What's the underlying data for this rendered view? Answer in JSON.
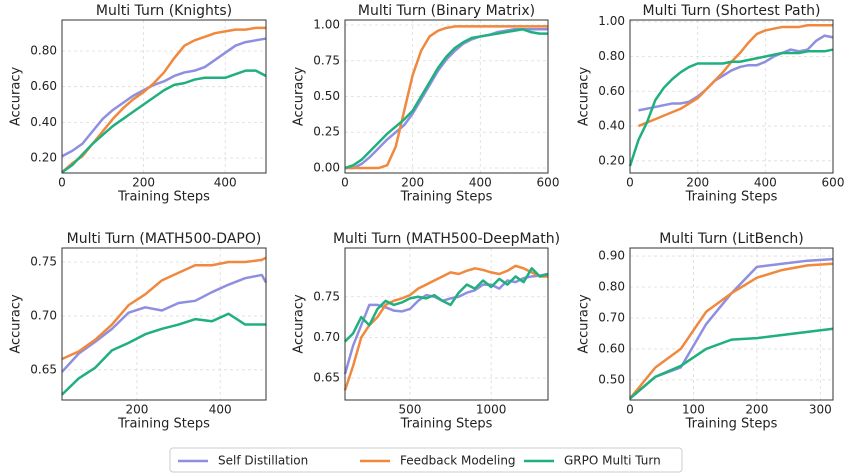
{
  "chart_data": [
    {
      "type": "line",
      "title": "Multi Turn (Knights)",
      "x_label": "Training Steps",
      "y_label": "Accuracy",
      "grid": true,
      "xlim": [
        0,
        500
      ],
      "xticks": [
        0,
        200,
        400
      ],
      "ylim": [
        0.116,
        0.974
      ],
      "yticks": [
        {
          "value": 0.2,
          "label": "0.20"
        },
        {
          "value": 0.4,
          "label": "0.40"
        },
        {
          "value": 0.6,
          "label": "0.60"
        },
        {
          "value": 0.8,
          "label": "0.80"
        }
      ],
      "x": [
        0,
        25,
        50,
        75,
        100,
        125,
        150,
        175,
        200,
        225,
        250,
        275,
        300,
        325,
        350,
        375,
        400,
        425,
        450,
        475,
        500
      ],
      "series": [
        {
          "name": "Self Distillation",
          "color": "#8f8fe2",
          "values": [
            0.21,
            0.24,
            0.28,
            0.35,
            0.42,
            0.47,
            0.51,
            0.55,
            0.58,
            0.61,
            0.63,
            0.66,
            0.68,
            0.69,
            0.71,
            0.75,
            0.79,
            0.83,
            0.85,
            0.86,
            0.87
          ]
        },
        {
          "name": "Feedback Modeling",
          "color": "#f0883e",
          "values": [
            0.12,
            0.17,
            0.21,
            0.28,
            0.35,
            0.42,
            0.48,
            0.53,
            0.57,
            0.62,
            0.68,
            0.76,
            0.83,
            0.86,
            0.88,
            0.9,
            0.91,
            0.92,
            0.92,
            0.93,
            0.93
          ]
        },
        {
          "name": "GRPO Multi Turn",
          "color": "#1fb07e",
          "values": [
            0.12,
            0.16,
            0.22,
            0.28,
            0.33,
            0.38,
            0.42,
            0.46,
            0.5,
            0.54,
            0.58,
            0.61,
            0.62,
            0.64,
            0.65,
            0.65,
            0.65,
            0.67,
            0.69,
            0.69,
            0.66
          ]
        }
      ]
    },
    {
      "type": "line",
      "title": "Multi Turn (Binary Matrix)",
      "x_label": "Training Steps",
      "y_label": "Accuracy",
      "grid": true,
      "xlim": [
        0,
        600
      ],
      "xticks": [
        0,
        200,
        400,
        600
      ],
      "ylim": [
        -0.035,
        1.035
      ],
      "yticks": [
        {
          "value": 0,
          "label": "0.00"
        },
        {
          "value": 0.25,
          "label": "0.25"
        },
        {
          "value": 0.5,
          "label": "0.50"
        },
        {
          "value": 0.75,
          "label": "0.75"
        },
        {
          "value": 1,
          "label": "1.00"
        }
      ],
      "x": [
        0,
        25,
        50,
        75,
        100,
        125,
        150,
        175,
        200,
        225,
        250,
        275,
        300,
        325,
        350,
        375,
        400,
        425,
        450,
        475,
        500,
        525,
        550,
        575,
        600
      ],
      "series": [
        {
          "name": "Self Distillation",
          "color": "#8f8fe2",
          "values": [
            0,
            0,
            0.03,
            0.08,
            0.14,
            0.2,
            0.25,
            0.3,
            0.38,
            0.48,
            0.58,
            0.68,
            0.76,
            0.82,
            0.87,
            0.9,
            0.92,
            0.93,
            0.95,
            0.96,
            0.97,
            0.97,
            0.97,
            0.97,
            0.97
          ]
        },
        {
          "name": "Feedback Modeling",
          "color": "#f0883e",
          "values": [
            0,
            0,
            0,
            0,
            0,
            0.02,
            0.15,
            0.4,
            0.65,
            0.82,
            0.92,
            0.96,
            0.98,
            0.99,
            0.99,
            0.99,
            0.99,
            0.99,
            0.99,
            0.99,
            0.99,
            0.99,
            0.99,
            0.99,
            0.99
          ]
        },
        {
          "name": "GRPO Multi Turn",
          "color": "#1fb07e",
          "values": [
            0,
            0.02,
            0.06,
            0.12,
            0.18,
            0.24,
            0.29,
            0.34,
            0.4,
            0.5,
            0.6,
            0.7,
            0.78,
            0.84,
            0.88,
            0.91,
            0.92,
            0.93,
            0.94,
            0.95,
            0.96,
            0.97,
            0.95,
            0.94,
            0.94
          ]
        }
      ]
    },
    {
      "type": "line",
      "title": "Multi Turn (Shortest Path)",
      "x_label": "Training Steps",
      "y_label": "Accuracy",
      "grid": true,
      "xlim": [
        0,
        600
      ],
      "xticks": [
        0,
        200,
        400,
        600
      ],
      "ylim": [
        0.13,
        1.01
      ],
      "yticks": [
        {
          "value": 0.2,
          "label": "0.20"
        },
        {
          "value": 0.4,
          "label": "0.40"
        },
        {
          "value": 0.6,
          "label": "0.60"
        },
        {
          "value": 0.8,
          "label": "0.80"
        },
        {
          "value": 1,
          "label": "1.00"
        }
      ],
      "x": [
        0,
        25,
        50,
        75,
        100,
        125,
        150,
        175,
        200,
        225,
        250,
        275,
        300,
        325,
        350,
        375,
        400,
        425,
        450,
        475,
        500,
        525,
        550,
        575,
        600
      ],
      "series": [
        {
          "name": "Self Distillation",
          "color": "#8f8fe2",
          "values": [
            null,
            0.49,
            0.5,
            0.51,
            0.52,
            0.53,
            0.53,
            0.54,
            0.57,
            0.61,
            0.66,
            0.69,
            0.72,
            0.74,
            0.75,
            0.75,
            0.77,
            0.8,
            0.82,
            0.84,
            0.83,
            0.84,
            0.89,
            0.92,
            0.91
          ]
        },
        {
          "name": "Feedback Modeling",
          "color": "#f0883e",
          "values": [
            null,
            0.4,
            0.42,
            0.44,
            0.46,
            0.48,
            0.5,
            0.53,
            0.56,
            0.61,
            0.66,
            0.71,
            0.77,
            0.82,
            0.88,
            0.93,
            0.95,
            0.96,
            0.97,
            0.97,
            0.97,
            0.98,
            0.98,
            0.98,
            0.98
          ]
        },
        {
          "name": "GRPO Multi Turn",
          "color": "#1fb07e",
          "values": [
            0.17,
            0.32,
            0.42,
            0.55,
            0.62,
            0.67,
            0.71,
            0.74,
            0.76,
            0.76,
            0.76,
            0.76,
            0.77,
            0.77,
            0.78,
            0.79,
            0.8,
            0.81,
            0.82,
            0.82,
            0.82,
            0.83,
            0.83,
            0.83,
            0.84
          ]
        }
      ]
    },
    {
      "type": "line",
      "title": "Multi Turn (MATH500-DAPO)",
      "x_label": "Training Steps",
      "y_label": "Accuracy",
      "grid": true,
      "xlim": [
        20,
        510
      ],
      "xticks": [
        200,
        400
      ],
      "ylim": [
        0.622,
        0.763
      ],
      "yticks": [
        {
          "value": 0.65,
          "label": "0.65"
        },
        {
          "value": 0.7,
          "label": "0.70"
        },
        {
          "value": 0.75,
          "label": "0.75"
        }
      ],
      "x": [
        20,
        60,
        100,
        140,
        180,
        220,
        260,
        300,
        340,
        380,
        420,
        460,
        500,
        510
      ],
      "series": [
        {
          "name": "Self Distillation",
          "color": "#8f8fe2",
          "values": [
            0.648,
            0.665,
            0.676,
            0.688,
            0.703,
            0.708,
            0.705,
            0.712,
            0.714,
            0.722,
            0.729,
            0.735,
            0.738,
            0.731
          ]
        },
        {
          "name": "Feedback Modeling",
          "color": "#f0883e",
          "values": [
            0.66,
            0.667,
            0.678,
            0.692,
            0.71,
            0.72,
            0.733,
            0.74,
            0.747,
            0.747,
            0.75,
            0.75,
            0.752,
            0.754
          ]
        },
        {
          "name": "GRPO Multi Turn",
          "color": "#1fb07e",
          "values": [
            0.627,
            0.642,
            0.652,
            0.668,
            0.675,
            0.683,
            0.688,
            0.692,
            0.697,
            0.695,
            0.702,
            0.692,
            0.692,
            0.692
          ]
        }
      ]
    },
    {
      "type": "line",
      "title": "Multi Turn (MATH500-DeepMath)",
      "x_label": "Training Steps",
      "y_label": "Accuracy",
      "grid": true,
      "xlim": [
        100,
        1350
      ],
      "xticks": [
        500,
        1000
      ],
      "ylim": [
        0.623,
        0.81
      ],
      "yticks": [
        {
          "value": 0.65,
          "label": "0.65"
        },
        {
          "value": 0.7,
          "label": "0.70"
        },
        {
          "value": 0.75,
          "label": "0.75"
        }
      ],
      "x": [
        100,
        150,
        200,
        250,
        300,
        350,
        400,
        450,
        500,
        550,
        600,
        650,
        700,
        750,
        800,
        850,
        900,
        950,
        1000,
        1050,
        1100,
        1150,
        1200,
        1250,
        1300,
        1350
      ],
      "series": [
        {
          "name": "Self Distillation",
          "color": "#8f8fe2",
          "values": [
            0.655,
            0.69,
            0.715,
            0.74,
            0.74,
            0.737,
            0.733,
            0.732,
            0.735,
            0.745,
            0.752,
            0.75,
            0.745,
            0.748,
            0.75,
            0.755,
            0.758,
            0.765,
            0.765,
            0.76,
            0.77,
            0.768,
            0.773,
            0.775,
            0.776,
            0.778
          ]
        },
        {
          "name": "Feedback Modeling",
          "color": "#f0883e",
          "values": [
            0.635,
            0.665,
            0.7,
            0.715,
            0.725,
            0.74,
            0.745,
            0.748,
            0.752,
            0.76,
            0.765,
            0.77,
            0.775,
            0.78,
            0.778,
            0.782,
            0.785,
            0.783,
            0.78,
            0.778,
            0.782,
            0.788,
            0.785,
            0.78,
            0.775,
            0.775
          ]
        },
        {
          "name": "GRPO Multi Turn",
          "color": "#1fb07e",
          "values": [
            0.695,
            0.705,
            0.725,
            0.715,
            0.735,
            0.745,
            0.74,
            0.743,
            0.748,
            0.75,
            0.748,
            0.752,
            0.745,
            0.74,
            0.755,
            0.765,
            0.76,
            0.77,
            0.762,
            0.772,
            0.765,
            0.775,
            0.768,
            0.785,
            0.775,
            0.778
          ]
        }
      ]
    },
    {
      "type": "line",
      "title": "Multi Turn (LitBench)",
      "x_label": "Training Steps",
      "y_label": "Accuracy",
      "grid": true,
      "xlim": [
        0,
        320
      ],
      "xticks": [
        0,
        100,
        200,
        300
      ],
      "ylim": [
        0.435,
        0.926
      ],
      "yticks": [
        {
          "value": 0.5,
          "label": "0.50"
        },
        {
          "value": 0.6,
          "label": "0.60"
        },
        {
          "value": 0.7,
          "label": "0.70"
        },
        {
          "value": 0.8,
          "label": "0.80"
        },
        {
          "value": 0.9,
          "label": "0.90"
        }
      ],
      "x": [
        0,
        40,
        80,
        120,
        160,
        200,
        240,
        280,
        320
      ],
      "series": [
        {
          "name": "Self Distillation",
          "color": "#8f8fe2",
          "values": [
            0.44,
            0.51,
            0.54,
            0.68,
            0.78,
            0.865,
            0.875,
            0.885,
            0.89
          ]
        },
        {
          "name": "Feedback Modeling",
          "color": "#f0883e",
          "values": [
            0.44,
            0.54,
            0.6,
            0.72,
            0.78,
            0.83,
            0.855,
            0.87,
            0.875
          ]
        },
        {
          "name": "GRPO Multi Turn",
          "color": "#1fb07e",
          "values": [
            0.44,
            0.51,
            0.545,
            0.6,
            0.63,
            0.635,
            0.645,
            0.655,
            0.665
          ]
        }
      ]
    }
  ]
}
